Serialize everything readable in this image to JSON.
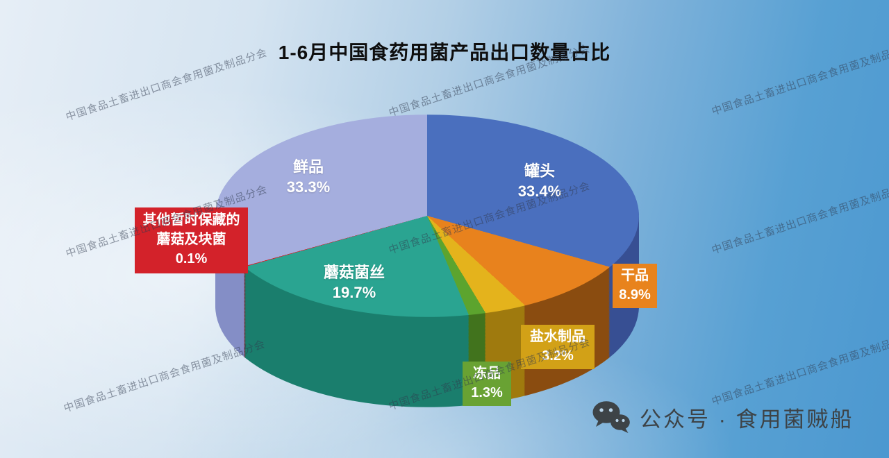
{
  "title": "1-6月中国食药用菌产品出口数量占比",
  "watermark": {
    "text": "中国食品土畜进出口商会食用菌及制品分会"
  },
  "footer": {
    "wechat_label": "公众号 · 食用菌贼船"
  },
  "chart_data": {
    "type": "pie",
    "style": "3d",
    "title": "1-6月中国食药用菌产品出口数量占比",
    "unit": "%",
    "start_angle_deg": 0,
    "direction": "clockwise",
    "legend_position": "none",
    "slices": [
      {
        "label": "罐头",
        "value": 33.4,
        "pct_label": "33.4%",
        "color": "#4a6fbe",
        "side_color": "#374f93",
        "label_style": "plain"
      },
      {
        "label": "干品",
        "value": 8.9,
        "pct_label": "8.9%",
        "color": "#e8821d",
        "side_color": "#8a4c10",
        "label_style": "box"
      },
      {
        "label": "盐水制品",
        "value": 3.2,
        "pct_label": "3.2%",
        "color": "#e4b31c",
        "side_color": "#9f7a0e",
        "label_style": "box"
      },
      {
        "label": "冻品",
        "value": 1.3,
        "pct_label": "1.3%",
        "color": "#5ca42e",
        "side_color": "#41731d",
        "label_style": "box"
      },
      {
        "label": "蘑菇菌丝",
        "value": 19.7,
        "pct_label": "19.7%",
        "color": "#2aa491",
        "side_color": "#1a7e6d",
        "label_style": "plain"
      },
      {
        "label": "其他暂时保藏的蘑菇及块菌",
        "label_lines": [
          "其他暂时保藏的",
          "蘑菇及块菌"
        ],
        "value": 0.1,
        "pct_label": "0.1%",
        "color": "#d3222a",
        "side_color": "#8c1318",
        "label_style": "box"
      },
      {
        "label": "鲜品",
        "value": 33.3,
        "pct_label": "33.3%",
        "color": "#a5aede",
        "side_color": "#848ec6",
        "label_style": "plain"
      }
    ]
  }
}
